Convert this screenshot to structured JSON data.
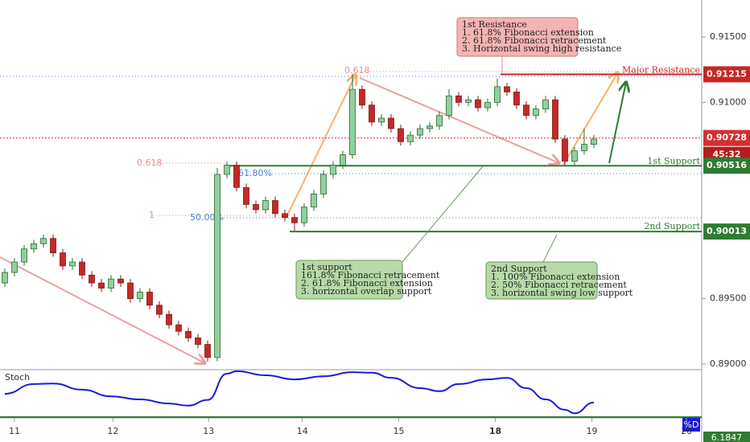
{
  "chart_data": {
    "type": "candlestick",
    "x": [
      0,
      1,
      2,
      3,
      4,
      5,
      6,
      7,
      8,
      9,
      10,
      11,
      12,
      13,
      14,
      15,
      16,
      17,
      18,
      19,
      20,
      21,
      22,
      23,
      24,
      25,
      26,
      27,
      28,
      29,
      30,
      31,
      32,
      33,
      34,
      35,
      36,
      37,
      38,
      39,
      40,
      41,
      42,
      43,
      44,
      45,
      46,
      47,
      48,
      49,
      50,
      51,
      52,
      53,
      54,
      55,
      56,
      57,
      58,
      59,
      60,
      61
    ],
    "open": [
      0.8962,
      0.897,
      0.8978,
      0.8988,
      0.8992,
      0.8996,
      0.8985,
      0.8975,
      0.8978,
      0.8968,
      0.8962,
      0.8958,
      0.8965,
      0.8962,
      0.895,
      0.8955,
      0.8945,
      0.8938,
      0.893,
      0.8925,
      0.892,
      0.8915,
      0.8905,
      0.9045,
      0.9052,
      0.9035,
      0.9022,
      0.9018,
      0.9025,
      0.9015,
      0.9012,
      0.9008,
      0.902,
      0.903,
      0.9045,
      0.9052,
      0.906,
      0.911,
      0.9098,
      0.9085,
      0.9088,
      0.908,
      0.907,
      0.9075,
      0.908,
      0.9082,
      0.909,
      0.9105,
      0.91,
      0.9102,
      0.9096,
      0.91,
      0.9112,
      0.9108,
      0.9098,
      0.909,
      0.9095,
      0.9102,
      0.9072,
      0.9055,
      0.9063,
      0.9068
    ],
    "high": [
      0.8973,
      0.8981,
      0.8991,
      0.8995,
      0.8999,
      0.8999,
      0.8988,
      0.8981,
      0.8981,
      0.8971,
      0.8965,
      0.8968,
      0.8968,
      0.8965,
      0.8958,
      0.8958,
      0.8948,
      0.8941,
      0.8933,
      0.8928,
      0.8923,
      0.8918,
      0.905,
      0.9055,
      0.9055,
      0.9038,
      0.9025,
      0.9028,
      0.9028,
      0.9018,
      0.9015,
      0.9023,
      0.9033,
      0.9048,
      0.9055,
      0.9063,
      0.9122,
      0.9113,
      0.9101,
      0.9091,
      0.9091,
      0.9083,
      0.9078,
      0.9083,
      0.9085,
      0.9093,
      0.911,
      0.9108,
      0.9105,
      0.9105,
      0.9103,
      0.9118,
      0.9115,
      0.9111,
      0.9101,
      0.9098,
      0.9105,
      0.9105,
      0.9075,
      0.9066,
      0.908,
      0.9075
    ],
    "low": [
      0.8959,
      0.8967,
      0.8975,
      0.8985,
      0.8989,
      0.8982,
      0.8972,
      0.8972,
      0.8965,
      0.8959,
      0.8955,
      0.8955,
      0.8959,
      0.8947,
      0.8947,
      0.8942,
      0.8935,
      0.8927,
      0.8922,
      0.8917,
      0.8912,
      0.8902,
      0.8902,
      0.9042,
      0.9032,
      0.9019,
      0.9015,
      0.9015,
      0.9012,
      0.9009,
      0.9002,
      0.9005,
      0.9017,
      0.9027,
      0.9042,
      0.9049,
      0.9057,
      0.9095,
      0.9082,
      0.9082,
      0.9077,
      0.9067,
      0.9067,
      0.9072,
      0.9077,
      0.9079,
      0.9087,
      0.9097,
      0.9097,
      0.9093,
      0.9093,
      0.9097,
      0.9105,
      0.9095,
      0.9087,
      0.9087,
      0.9092,
      0.9069,
      0.9052,
      0.9052,
      0.906,
      0.9065
    ],
    "close": [
      0.897,
      0.8978,
      0.8988,
      0.8992,
      0.8996,
      0.8985,
      0.8975,
      0.8978,
      0.8968,
      0.8962,
      0.8958,
      0.8965,
      0.8962,
      0.895,
      0.8955,
      0.8945,
      0.8938,
      0.893,
      0.8925,
      0.892,
      0.8915,
      0.8905,
      0.9045,
      0.9052,
      0.9035,
      0.9022,
      0.9018,
      0.9025,
      0.9015,
      0.9012,
      0.9008,
      0.902,
      0.903,
      0.9045,
      0.9052,
      0.906,
      0.911,
      0.9098,
      0.9085,
      0.9088,
      0.908,
      0.907,
      0.9075,
      0.908,
      0.9082,
      0.909,
      0.9105,
      0.91,
      0.9102,
      0.9096,
      0.91,
      0.9112,
      0.9108,
      0.9098,
      0.909,
      0.9095,
      0.9102,
      0.9072,
      0.9055,
      0.9063,
      0.9068,
      0.9072
    ],
    "up_color": "#8fd19e",
    "down_color": "#c62828",
    "xlim": [
      -0.5,
      72.17
    ],
    "xticks": [
      {
        "value": 1,
        "label": "11"
      },
      {
        "value": 11.2,
        "label": "12"
      },
      {
        "value": 21.1,
        "label": "13"
      },
      {
        "value": 30.8,
        "label": "14"
      },
      {
        "value": 40.8,
        "label": "15"
      },
      {
        "value": 50.8,
        "label": "18"
      },
      {
        "value": 60.8,
        "label": "19"
      },
      {
        "value": 70.6,
        "label": "20"
      }
    ],
    "ylim": [
      0.88957,
      0.91783
    ],
    "yticks": [
      {
        "value": 0.915,
        "label": "0.91500"
      },
      {
        "value": 0.91,
        "label": "0.91000"
      },
      {
        "value": 0.895,
        "label": "0.89500"
      },
      {
        "value": 0.89,
        "label": "0.89000"
      }
    ],
    "price_levels": [
      {
        "name": "Major Resistance",
        "value": 0.91215,
        "label": "0.91215",
        "color": "#c62828"
      },
      {
        "value": 0.90728,
        "label": "0.90728",
        "color": "#d32f2f"
      },
      {
        "name": "1st Support",
        "value": 0.90516,
        "label": "0.90516",
        "color": "#2e7d32"
      },
      {
        "name": "2nd Support",
        "value": 0.90013,
        "label": "0.90013",
        "color": "#2e7d32"
      }
    ],
    "countdown": "45:32",
    "fib_labels": [
      "0.618",
      "0.618",
      "61.80%",
      "1",
      "50.00%"
    ],
    "annotations": [
      {
        "title": "1st Resistance",
        "lines": [
          "1. 61.8% Fibonacci extension",
          "2. 61.8% Fibonacci retracement",
          "3. Horizontal swing high resistance"
        ]
      },
      {
        "title": "1st support",
        "lines": [
          "161.8% Fibonacci retracement",
          "2. 61.8% Fibonacci extension",
          "3. horizontal overlap support"
        ]
      },
      {
        "title": "2nd Support",
        "lines": [
          "1. 100% Fibonacci extension",
          "2. 50% Fibonacci retracement",
          "3. horizontal swing low support"
        ]
      }
    ],
    "stoch": {
      "type": "line",
      "title": "Stoch",
      "legend": "%D",
      "value": 6.1847,
      "color": "#1a1adb",
      "ylim": [
        0,
        100
      ],
      "x": [
        0,
        3,
        5,
        8,
        11,
        14,
        17,
        19,
        21,
        23,
        24,
        27,
        30,
        33,
        36,
        38,
        40,
        43,
        45,
        47,
        50,
        52,
        54,
        56,
        58,
        59,
        61
      ],
      "values": [
        50,
        69,
        70,
        58,
        45,
        39,
        31,
        27,
        38,
        89,
        94,
        86,
        78,
        84,
        92,
        91,
        81,
        61,
        55,
        69,
        78,
        81,
        61,
        39,
        19,
        12,
        33
      ]
    }
  }
}
